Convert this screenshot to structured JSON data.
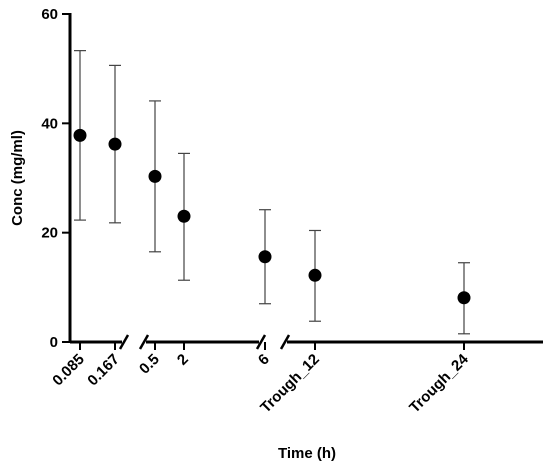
{
  "chart_data": {
    "type": "scatter",
    "title": "",
    "xlabel": "Time (h)",
    "ylabel": "Conc (mg/ml)",
    "ylim": [
      0,
      60
    ],
    "yticks": [
      0,
      20,
      40,
      60
    ],
    "grid": false,
    "x_axis_breaks": [
      "0.167-0.5",
      "6-Trough_12"
    ],
    "categories": [
      "0.085",
      "0.167",
      "0.5",
      "2",
      "6",
      "Trough_12",
      "Trough_24"
    ],
    "series": [
      {
        "values": [
          37.8,
          36.2,
          30.3,
          23.0,
          15.6,
          12.2,
          8.1
        ],
        "error_low": [
          22.3,
          21.8,
          16.5,
          11.3,
          7.0,
          3.8,
          1.5
        ],
        "error_high": [
          53.3,
          50.6,
          44.1,
          34.5,
          24.2,
          20.4,
          14.5
        ],
        "marker": "filled-circle",
        "color": "#000000"
      }
    ]
  }
}
